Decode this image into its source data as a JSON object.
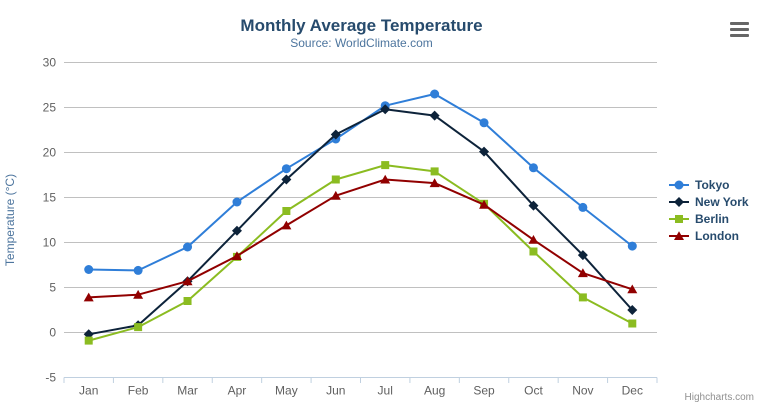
{
  "chart": {
    "credit": "Highcharts.com"
  },
  "chart_data": {
    "type": "line",
    "title": "Monthly Average Temperature",
    "subtitle": "Source: WorldClimate.com",
    "xlabel": "",
    "ylabel": "Temperature (°C)",
    "categories": [
      "Jan",
      "Feb",
      "Mar",
      "Apr",
      "May",
      "Jun",
      "Jul",
      "Aug",
      "Sep",
      "Oct",
      "Nov",
      "Dec"
    ],
    "ylim": [
      -5,
      30
    ],
    "yticks": [
      -5,
      0,
      5,
      10,
      15,
      20,
      25,
      30
    ],
    "grid": true,
    "legend_position": "right-middle",
    "series": [
      {
        "name": "Tokyo",
        "color": "#2f7ed8",
        "marker": "circle",
        "values": [
          7.0,
          6.9,
          9.5,
          14.5,
          18.2,
          21.5,
          25.2,
          26.5,
          23.3,
          18.3,
          13.9,
          9.6
        ]
      },
      {
        "name": "New York",
        "color": "#0d233a",
        "marker": "diamond",
        "values": [
          -0.2,
          0.8,
          5.7,
          11.3,
          17.0,
          22.0,
          24.8,
          24.1,
          20.1,
          14.1,
          8.6,
          2.5
        ]
      },
      {
        "name": "Berlin",
        "color": "#8bbc21",
        "marker": "square",
        "values": [
          -0.9,
          0.6,
          3.5,
          8.4,
          13.5,
          17.0,
          18.6,
          17.9,
          14.3,
          9.0,
          3.9,
          1.0
        ]
      },
      {
        "name": "London",
        "color": "#910000",
        "marker": "triangle",
        "values": [
          3.9,
          4.2,
          5.7,
          8.5,
          11.9,
          15.2,
          17.0,
          16.6,
          14.2,
          10.3,
          6.6,
          4.8
        ]
      }
    ]
  },
  "theme": {
    "title_color": "#274b6d",
    "subtitle_color": "#4d759e",
    "axis_title_color": "#4d759e",
    "axis_label_color": "#606060",
    "legend_text_color": "#274b6d",
    "grid_color": "#C0C0C0",
    "axis_line_color": "#C0D0E0",
    "credit_color": "#909090",
    "menu_icon_color": "#666666",
    "background": "#FFFFFF"
  }
}
